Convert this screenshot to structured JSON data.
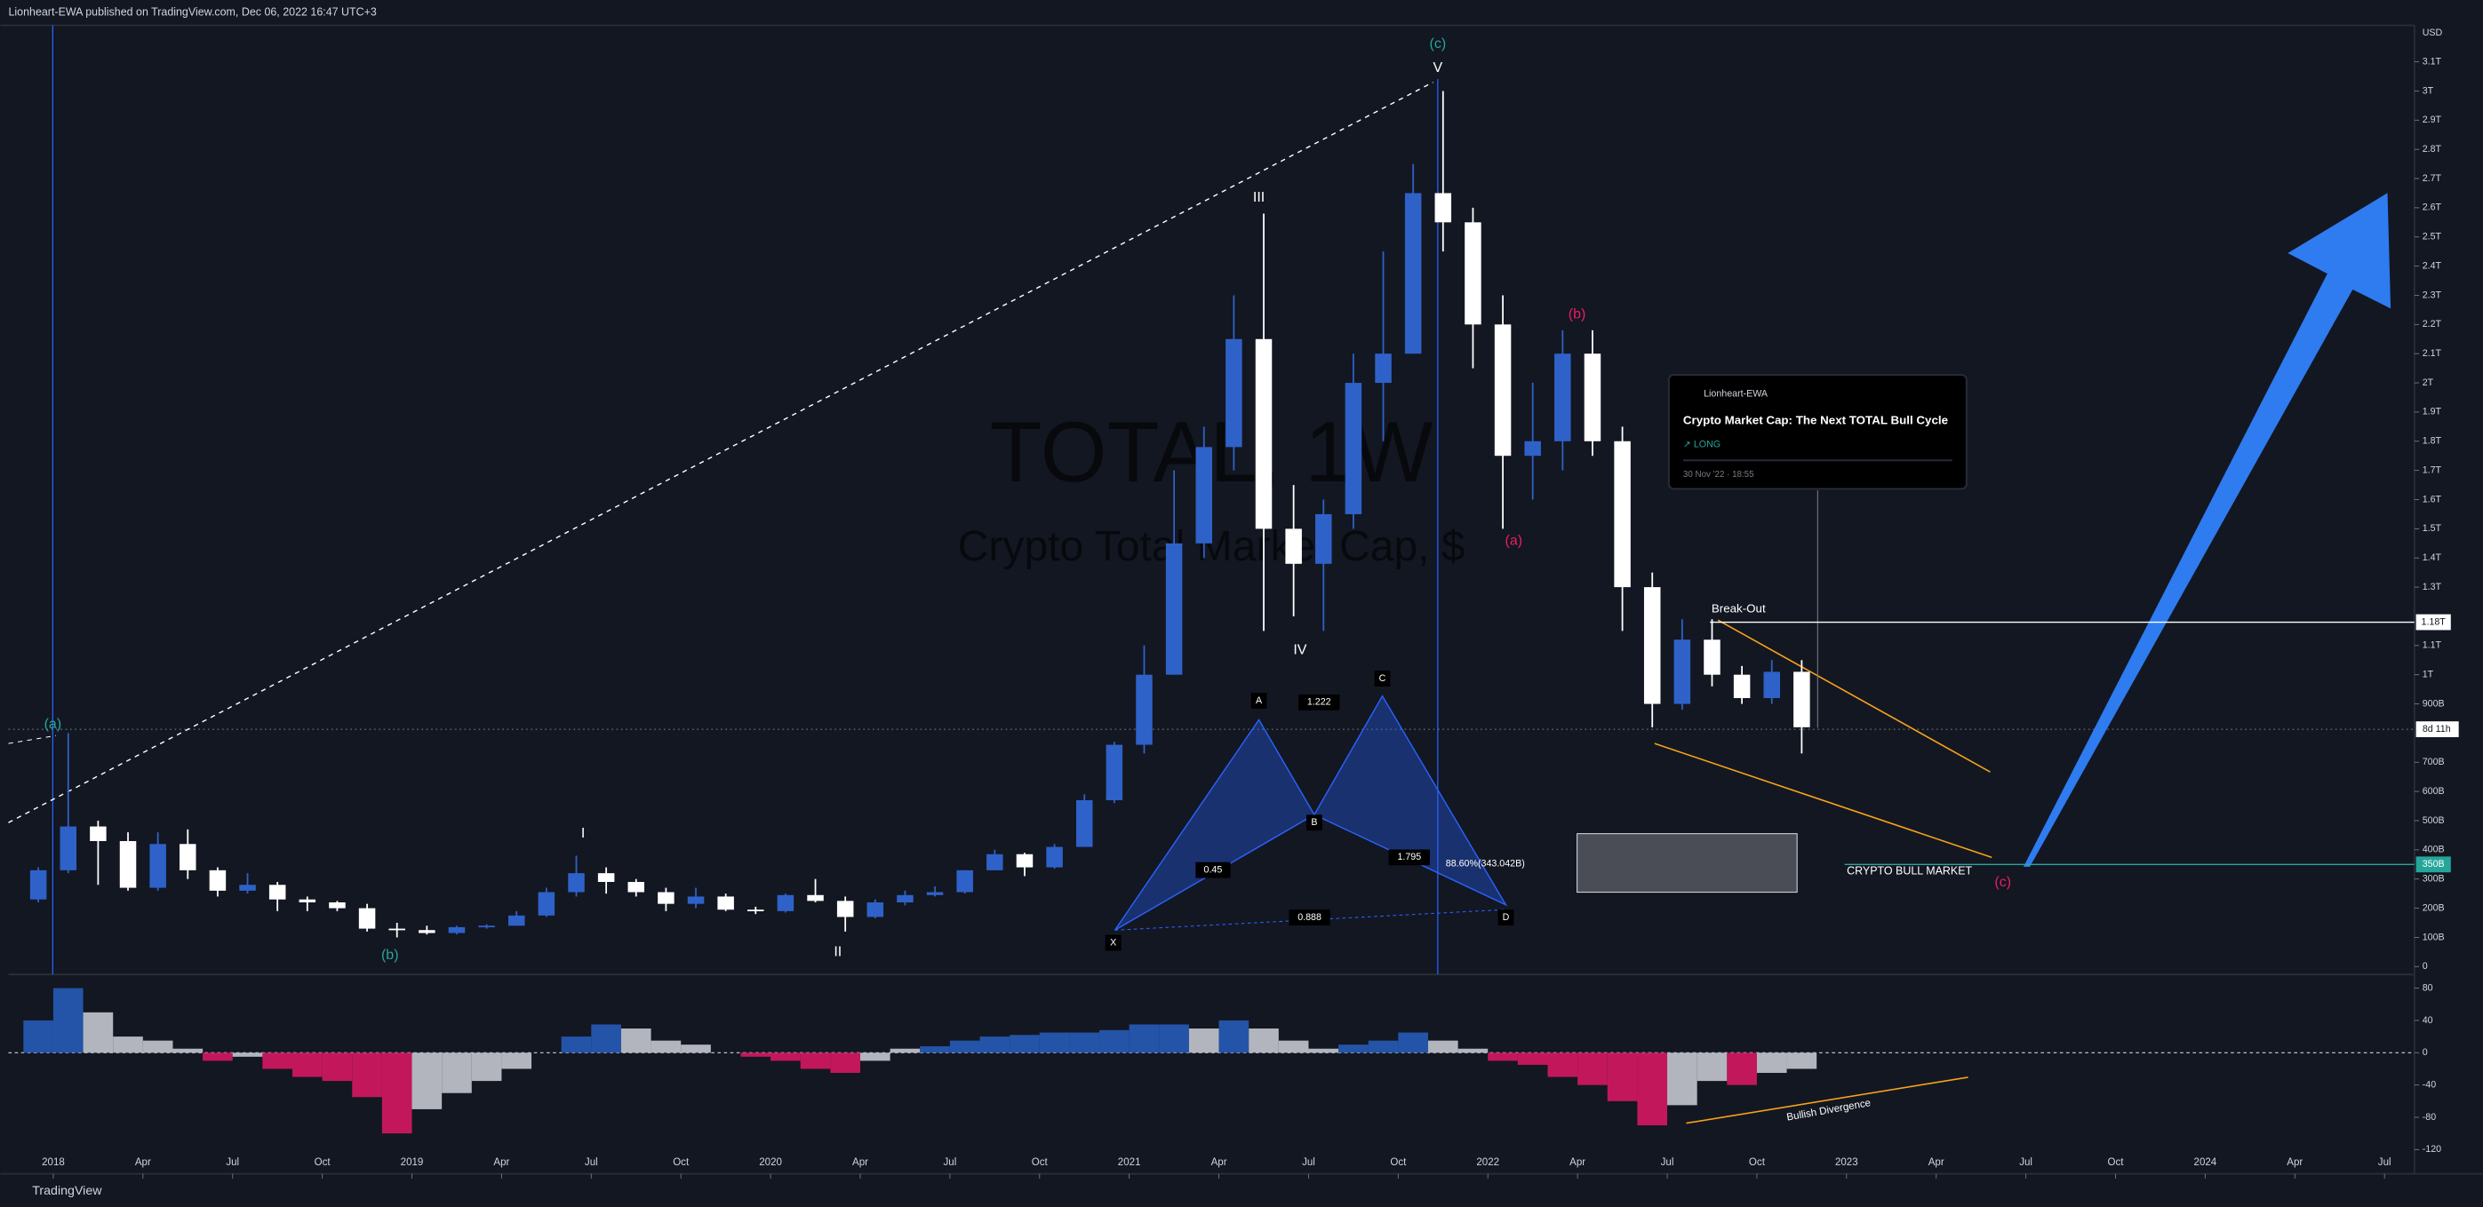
{
  "header": "Lionheart-EWA published on TradingView.com, Dec 06, 2022 16:47 UTC+3",
  "watermark": {
    "symbol": "TOTAL, 1W",
    "name": "Crypto Total Market Cap, $"
  },
  "currency": "USD",
  "footer": "TradingView",
  "idea_card": {
    "author": "Lionheart-EWA",
    "title": "Crypto Market Cap: The Next TOTAL Bull Cycle",
    "direction": "↗ LONG",
    "date": "30 Nov '22 · 18:55"
  },
  "countdown": "8d 11h",
  "annotations": [
    "(a)",
    "(b)",
    "I",
    "II",
    "III",
    "IV",
    "(c)",
    "V",
    "(a)",
    "(b)",
    "(c)",
    "Break-Out",
    "CRYPTO BULL MARKET",
    "X",
    "A",
    "B",
    "C",
    "D",
    "1.222",
    "0.45",
    "1.795",
    "0.888",
    "88.60%(343.042B)",
    "Bullish Divergence"
  ],
  "chart_data": [
    {
      "type": "candlestick",
      "x": [
        -0.5,
        0.5,
        1.5,
        2.5,
        3.5,
        4.5,
        5.5,
        6.5,
        7.5,
        8.5,
        9.5,
        10.5,
        11.5,
        12.5,
        13.5,
        14.5,
        15.5,
        16.5,
        17.5,
        18.5,
        19.5,
        20.5,
        21.5,
        22.5,
        23.5,
        24.5,
        25.5,
        26.5,
        27.5,
        28.5,
        29.5,
        30.5,
        31.5,
        32.5,
        33.5,
        34.5,
        35.5,
        36.5,
        37.5,
        38.5,
        39.5,
        40.5,
        41.5,
        42.5,
        43.5,
        44.5,
        45.5,
        46.5,
        47.5,
        48.5,
        49.5,
        50.5,
        51.5,
        52.5,
        53.5,
        54.5,
        55.5,
        56.5,
        57.5,
        58.5
      ],
      "open": [
        230,
        330,
        480,
        430,
        270,
        420,
        330,
        260,
        280,
        230,
        220,
        200,
        130,
        125,
        115,
        135,
        140,
        175,
        255,
        320,
        290,
        255,
        215,
        240,
        195,
        190,
        245,
        225,
        170,
        220,
        245,
        255,
        330,
        385,
        340,
        410,
        570,
        760,
        1000,
        1450,
        1780,
        2150,
        1500,
        1380,
        1550,
        2000,
        2100,
        2650,
        2550,
        2200,
        1750,
        1800,
        2100,
        1800,
        1300,
        900,
        1120,
        1000,
        920,
        1010
      ],
      "high": [
        340,
        800,
        500,
        460,
        460,
        470,
        340,
        320,
        290,
        240,
        225,
        215,
        150,
        140,
        140,
        145,
        190,
        270,
        380,
        340,
        300,
        270,
        270,
        250,
        205,
        250,
        300,
        240,
        230,
        260,
        275,
        330,
        400,
        390,
        420,
        590,
        770,
        1100,
        1700,
        1850,
        2300,
        2580,
        1650,
        1600,
        2100,
        2450,
        2750,
        3000,
        2600,
        2300,
        2000,
        2180,
        2180,
        1850,
        1350,
        1190,
        1190,
        1030,
        1050,
        1050
      ],
      "low": [
        220,
        320,
        280,
        260,
        260,
        300,
        240,
        250,
        190,
        190,
        190,
        120,
        100,
        110,
        110,
        130,
        140,
        170,
        240,
        250,
        240,
        190,
        200,
        190,
        180,
        185,
        220,
        120,
        165,
        210,
        240,
        250,
        330,
        310,
        335,
        410,
        560,
        730,
        1000,
        1400,
        1700,
        1150,
        1200,
        1150,
        1500,
        1800,
        2100,
        2450,
        2050,
        1500,
        1600,
        1700,
        1750,
        1150,
        820,
        880,
        960,
        900,
        900,
        730
      ],
      "close": [
        330,
        480,
        430,
        270,
        420,
        330,
        260,
        280,
        230,
        220,
        200,
        130,
        125,
        115,
        135,
        140,
        175,
        255,
        320,
        290,
        255,
        215,
        240,
        195,
        190,
        245,
        225,
        170,
        220,
        245,
        255,
        330,
        385,
        340,
        410,
        570,
        760,
        1000,
        1450,
        1780,
        2150,
        1500,
        1380,
        1550,
        2000,
        2100,
        2650,
        2550,
        2200,
        1750,
        1800,
        2100,
        1800,
        1300,
        900,
        1120,
        1000,
        920,
        1010,
        820
      ],
      "up_color": "#2f62c8",
      "down_color": "#ffffff",
      "xlim": [
        -1.5,
        79
      ],
      "xticks": [
        {
          "value": 0,
          "label": "2018"
        },
        {
          "value": 3,
          "label": "Apr"
        },
        {
          "value": 6,
          "label": "Jul"
        },
        {
          "value": 9,
          "label": "Oct"
        },
        {
          "value": 12,
          "label": "2019"
        },
        {
          "value": 15,
          "label": "Apr"
        },
        {
          "value": 18,
          "label": "Jul"
        },
        {
          "value": 21,
          "label": "Oct"
        },
        {
          "value": 24,
          "label": "2020"
        },
        {
          "value": 27,
          "label": "Apr"
        },
        {
          "value": 30,
          "label": "Jul"
        },
        {
          "value": 33,
          "label": "Oct"
        },
        {
          "value": 36,
          "label": "2021"
        },
        {
          "value": 39,
          "label": "Apr"
        },
        {
          "value": 42,
          "label": "Jul"
        },
        {
          "value": 45,
          "label": "Oct"
        },
        {
          "value": 48,
          "label": "2022"
        },
        {
          "value": 51,
          "label": "Apr"
        },
        {
          "value": 54,
          "label": "Jul"
        },
        {
          "value": 57,
          "label": "Oct"
        },
        {
          "value": 60,
          "label": "2023"
        },
        {
          "value": 63,
          "label": "Apr"
        },
        {
          "value": 66,
          "label": "Jul"
        },
        {
          "value": 69,
          "label": "Oct"
        },
        {
          "value": 72,
          "label": "2024"
        },
        {
          "value": 75,
          "label": "Apr"
        },
        {
          "value": 78,
          "label": "Jul"
        }
      ],
      "ylim": [
        -27,
        3225
      ],
      "yticks": [
        0,
        {
          "value": 100,
          "label": "100B"
        },
        {
          "value": 200,
          "label": "200B"
        },
        {
          "value": 300,
          "label": "300B"
        },
        {
          "value": 400,
          "label": "400B"
        },
        {
          "value": 500,
          "label": "500B"
        },
        {
          "value": 600,
          "label": "600B"
        },
        {
          "value": 700,
          "label": "700B"
        },
        {
          "value": 900,
          "label": "900B"
        },
        {
          "value": 1000,
          "label": "1T"
        },
        {
          "value": 1100,
          "label": "1.1T"
        },
        {
          "value": 1300,
          "label": "1.3T"
        },
        {
          "value": 1400,
          "label": "1.4T"
        },
        {
          "value": 1500,
          "label": "1.5T"
        },
        {
          "value": 1600,
          "label": "1.6T"
        },
        {
          "value": 1700,
          "label": "1.7T"
        },
        {
          "value": 1800,
          "label": "1.8T"
        },
        {
          "value": 1900,
          "label": "1.9T"
        },
        {
          "value": 2000,
          "label": "2T"
        },
        {
          "value": 2100,
          "label": "2.1T"
        },
        {
          "value": 2200,
          "label": "2.2T"
        },
        {
          "value": 2300,
          "label": "2.3T"
        },
        {
          "value": 2400,
          "label": "2.4T"
        },
        {
          "value": 2500,
          "label": "2.5T"
        },
        {
          "value": 2600,
          "label": "2.6T"
        },
        {
          "value": 2700,
          "label": "2.7T"
        },
        {
          "value": 2800,
          "label": "2.8T"
        },
        {
          "value": 2900,
          "label": "2.9T"
        },
        {
          "value": 3000,
          "label": "3T"
        },
        {
          "value": 3100,
          "label": "3.1T"
        }
      ],
      "price_lines": [
        {
          "value": 1180,
          "label": "1.18T",
          "color": "#ffffff"
        },
        {
          "value": 350,
          "label": "350B",
          "color": "#26a69a"
        }
      ],
      "grid": false
    },
    {
      "type": "oscillator",
      "x": [
        -0.5,
        0.5,
        1.5,
        2.5,
        3.5,
        4.5,
        5.5,
        6.5,
        7.5,
        8.5,
        9.5,
        10.5,
        11.5,
        12.5,
        13.5,
        14.5,
        15.5,
        16.5,
        17.5,
        18.5,
        19.5,
        20.5,
        21.5,
        22.5,
        23.5,
        24.5,
        25.5,
        26.5,
        27.5,
        28.5,
        29.5,
        30.5,
        31.5,
        32.5,
        33.5,
        34.5,
        35.5,
        36.5,
        37.5,
        38.5,
        39.5,
        40.5,
        41.5,
        42.5,
        43.5,
        44.5,
        45.5,
        46.5,
        47.5,
        48.5,
        49.5,
        50.5,
        51.5,
        52.5,
        53.5,
        54.5,
        55.5,
        56.5,
        57.5,
        58.5
      ],
      "values": [
        40,
        80,
        50,
        20,
        15,
        5,
        -10,
        -5,
        -20,
        -30,
        -35,
        -55,
        -100,
        -70,
        -50,
        -35,
        -20,
        0,
        20,
        35,
        30,
        15,
        10,
        0,
        -5,
        -10,
        -20,
        -25,
        -10,
        5,
        8,
        15,
        20,
        22,
        25,
        25,
        28,
        35,
        35,
        30,
        40,
        30,
        15,
        5,
        10,
        15,
        25,
        15,
        5,
        -10,
        -15,
        -30,
        -40,
        -60,
        -90,
        -65,
        -35,
        -40,
        -25,
        -20
      ],
      "colors": {
        "up": "#2454a8",
        "down": "#c2185b",
        "fade": "#b2b5be"
      },
      "ylim": [
        -150,
        95
      ],
      "yticks": [
        80,
        40,
        0,
        -40,
        -80,
        -120
      ]
    }
  ]
}
